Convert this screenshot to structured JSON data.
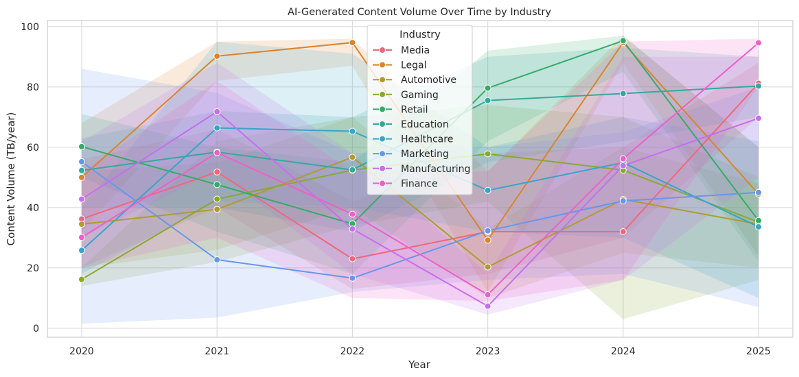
{
  "chart_data": {
    "type": "line",
    "title": "AI-Generated Content Volume Over Time by Industry",
    "xlabel": "Year",
    "ylabel": "Content Volume (TB/year)",
    "x": [
      "2020",
      "2021",
      "2022",
      "2023",
      "2024",
      "2025"
    ],
    "yticks": [
      "0",
      "20",
      "40",
      "60",
      "80",
      "100"
    ],
    "ylim": [
      -3,
      102
    ],
    "grid": true,
    "legend": {
      "title": "Industry",
      "placement": "top-center"
    },
    "series": [
      {
        "name": "Media",
        "color": "#f0677a",
        "values": [
          36.2,
          51.8,
          23.0,
          32.0,
          32.0,
          81.2
        ],
        "lower": [
          20,
          40,
          13,
          18,
          30,
          70
        ],
        "upper": [
          56,
          66,
          42,
          58,
          60,
          88
        ]
      },
      {
        "name": "Legal",
        "color": "#d9842d",
        "values": [
          50.0,
          90.2,
          94.7,
          29.2,
          94.7,
          44.5
        ],
        "lower": [
          32,
          82,
          87,
          12,
          88,
          24
        ],
        "upper": [
          68,
          95,
          96,
          52,
          97,
          60
        ]
      },
      {
        "name": "Automotive",
        "color": "#b09a2f",
        "values": [
          34.5,
          39.4,
          56.7,
          20.3,
          42.7,
          34.5
        ],
        "lower": [
          20,
          26,
          40,
          10,
          25,
          20
        ],
        "upper": [
          52,
          55,
          70,
          33,
          60,
          48
        ]
      },
      {
        "name": "Gaming",
        "color": "#88a92f",
        "values": [
          16.2,
          42.8,
          52.4,
          57.8,
          52.4,
          35.2
        ],
        "lower": [
          14,
          22,
          34,
          42,
          3,
          16
        ],
        "upper": [
          20,
          62,
          70,
          74,
          70,
          50
        ]
      },
      {
        "name": "Retail",
        "color": "#34ab6a",
        "values": [
          60.2,
          47.6,
          34.6,
          79.6,
          95.3,
          35.7
        ],
        "lower": [
          50,
          32,
          18,
          62,
          85,
          22
        ],
        "upper": [
          71,
          60,
          55,
          92,
          97,
          60
        ]
      },
      {
        "name": "Education",
        "color": "#35a89d",
        "values": [
          52.3,
          58.4,
          52.5,
          75.5,
          77.8,
          80.3
        ],
        "lower": [
          40,
          40,
          32,
          55,
          62,
          70
        ],
        "upper": [
          63,
          72,
          70,
          90,
          93,
          90
        ]
      },
      {
        "name": "Healthcare",
        "color": "#38a5c8",
        "values": [
          25.8,
          66.4,
          65.3,
          45.7,
          54.9,
          33.6
        ],
        "lower": [
          18,
          42,
          40,
          32,
          30,
          10
        ],
        "upper": [
          40,
          95,
          91,
          60,
          70,
          62
        ]
      },
      {
        "name": "Marketing",
        "color": "#6896ec",
        "values": [
          55.2,
          22.7,
          16.6,
          32.3,
          42.2,
          45.0
        ],
        "lower": [
          1.5,
          3.5,
          12,
          16,
          18,
          7
        ],
        "upper": [
          86,
          78,
          58,
          60,
          65,
          80
        ]
      },
      {
        "name": "Manufacturing",
        "color": "#c66ef0",
        "values": [
          42.8,
          71.8,
          32.9,
          7.3,
          53.9,
          69.6
        ],
        "lower": [
          30,
          52,
          18,
          4.5,
          16,
          50
        ],
        "upper": [
          62,
          88,
          58,
          18,
          90,
          90
        ]
      },
      {
        "name": "Finance",
        "color": "#ee5fc9",
        "values": [
          30.1,
          58.2,
          37.8,
          11.1,
          56.2,
          94.6
        ],
        "lower": [
          20,
          30,
          10,
          9,
          16,
          80
        ],
        "upper": [
          52,
          82,
          52,
          52,
          95,
          96
        ]
      }
    ]
  }
}
